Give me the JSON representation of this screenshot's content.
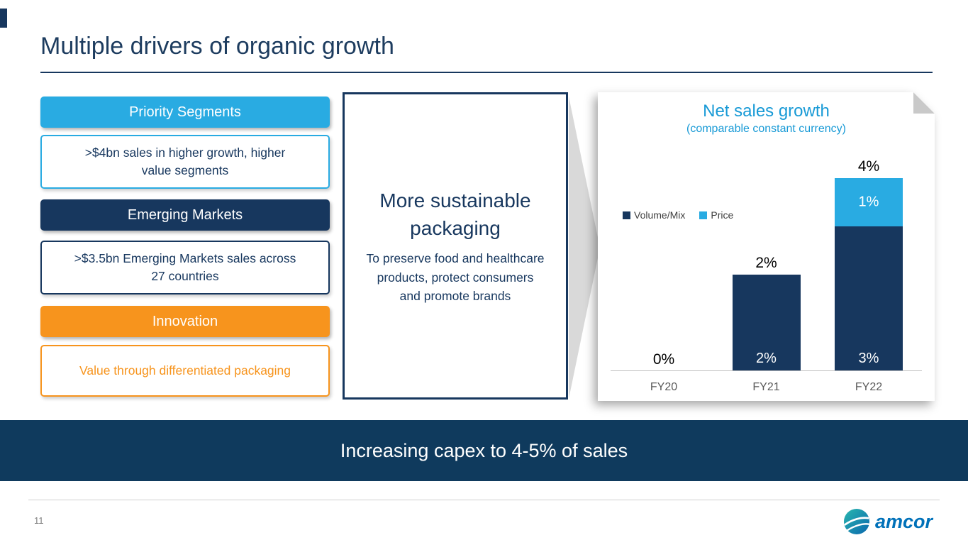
{
  "slide": {
    "title": "Multiple drivers of organic growth",
    "page_number": "11",
    "banner_text": "Increasing capex to 4-5% of sales"
  },
  "left_panel": {
    "items": [
      {
        "header": "Priority Segments",
        "detail": ">$4bn sales in higher growth, higher value segments",
        "accent_color": "#29abe2"
      },
      {
        "header": "Emerging Markets",
        "detail": ">$3.5bn Emerging Markets sales across 27 countries",
        "accent_color": "#17375e"
      },
      {
        "header": "Innovation",
        "detail": "Value through differentiated packaging",
        "accent_color": "#f7941d"
      }
    ]
  },
  "center_panel": {
    "heading": "More sustainable packaging",
    "body": "To preserve food and healthcare products, protect consumers and promote brands"
  },
  "chart_data": {
    "type": "bar",
    "stacked": true,
    "title": "Net sales growth",
    "subtitle": "(comparable constant currency)",
    "categories": [
      "FY20",
      "FY21",
      "FY22"
    ],
    "series": [
      {
        "name": "Volume/Mix",
        "color": "#17375e",
        "values": [
          0,
          2,
          3
        ]
      },
      {
        "name": "Price",
        "color": "#29abe2",
        "values": [
          0,
          0,
          1
        ]
      }
    ],
    "total_labels": [
      "0%",
      "2%",
      "4%"
    ],
    "segment_labels": {
      "volume": [
        "",
        "2%",
        "3%"
      ],
      "price": [
        "",
        "",
        "1%"
      ]
    },
    "unit": "%",
    "ylim": [
      0,
      4
    ],
    "grid": false,
    "legend_position": "center-left"
  },
  "footer": {
    "logo_text": "amcor"
  },
  "palette": {
    "navy": "#17375e",
    "cyan": "#29abe2",
    "orange": "#f7941d",
    "banner_navy": "#0f3a5d",
    "chart_title_cyan": "#189ad6"
  }
}
